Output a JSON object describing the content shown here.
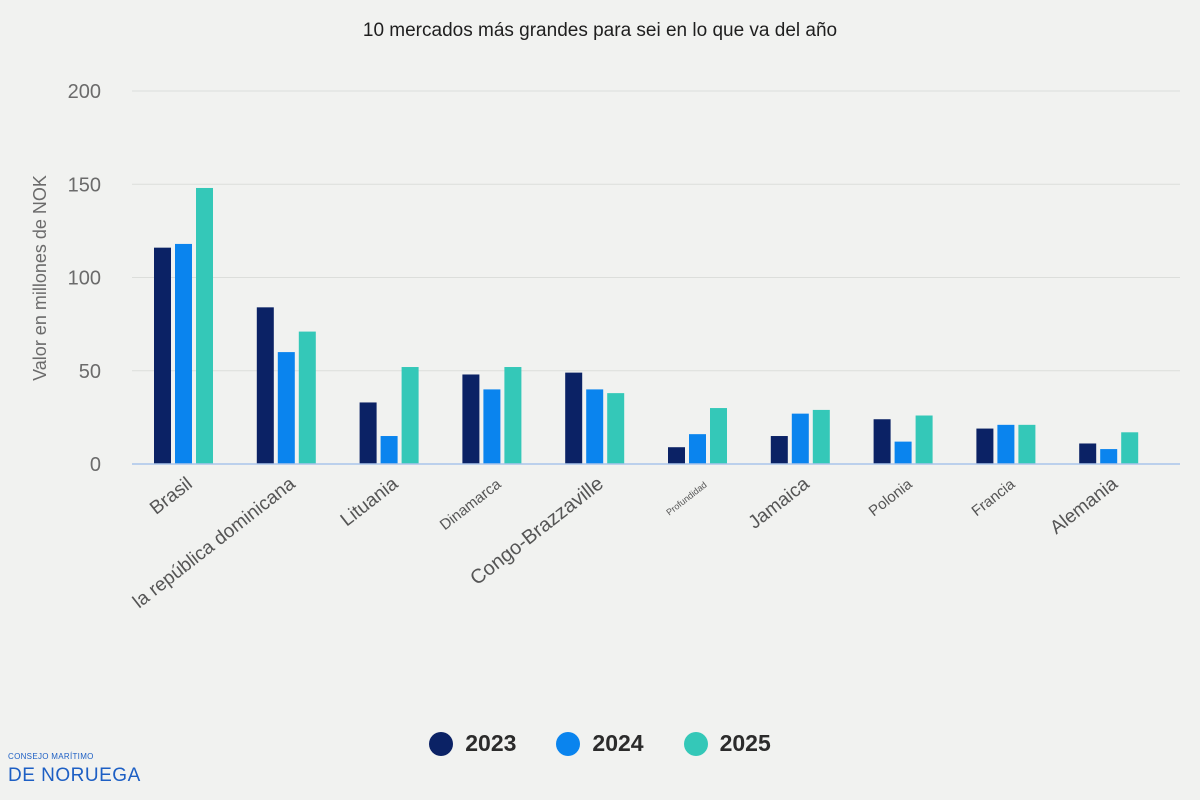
{
  "title": "10 mercados más grandes para sei en lo que va del año",
  "legend": [
    {
      "label": "2023",
      "color": "#0b2265"
    },
    {
      "label": "2024",
      "color": "#0a84ee"
    },
    {
      "label": "2025",
      "color": "#34c8b8"
    }
  ],
  "logo": {
    "line1": "CONSEJO MARÍTIMO",
    "line2": "DE NORUEGA"
  },
  "chart_data": {
    "type": "bar",
    "title": "10 mercados más grandes para sei en lo que va del año",
    "ylabel": "Valor en millones de NOK",
    "xlabel": "",
    "ylim": [
      0,
      200
    ],
    "yticks": [
      0,
      50,
      100,
      150,
      200
    ],
    "grid": true,
    "legend_position": "bottom",
    "categories": [
      "Brasil",
      "la república dominicana",
      "Lituania",
      "Dinamarca",
      "Congo-Brazzaville",
      "Profundidad",
      "Jamaica",
      "Polonia",
      "Francia",
      "Alemania"
    ],
    "series": [
      {
        "name": "2023",
        "color": "#0b2265",
        "values": [
          116,
          84,
          33,
          48,
          49,
          9,
          15,
          24,
          19,
          11
        ]
      },
      {
        "name": "2024",
        "color": "#0a84ee",
        "values": [
          118,
          60,
          15,
          40,
          40,
          16,
          27,
          12,
          21,
          8
        ]
      },
      {
        "name": "2025",
        "color": "#34c8b8",
        "values": [
          148,
          71,
          52,
          52,
          38,
          30,
          29,
          26,
          21,
          17
        ]
      }
    ]
  }
}
